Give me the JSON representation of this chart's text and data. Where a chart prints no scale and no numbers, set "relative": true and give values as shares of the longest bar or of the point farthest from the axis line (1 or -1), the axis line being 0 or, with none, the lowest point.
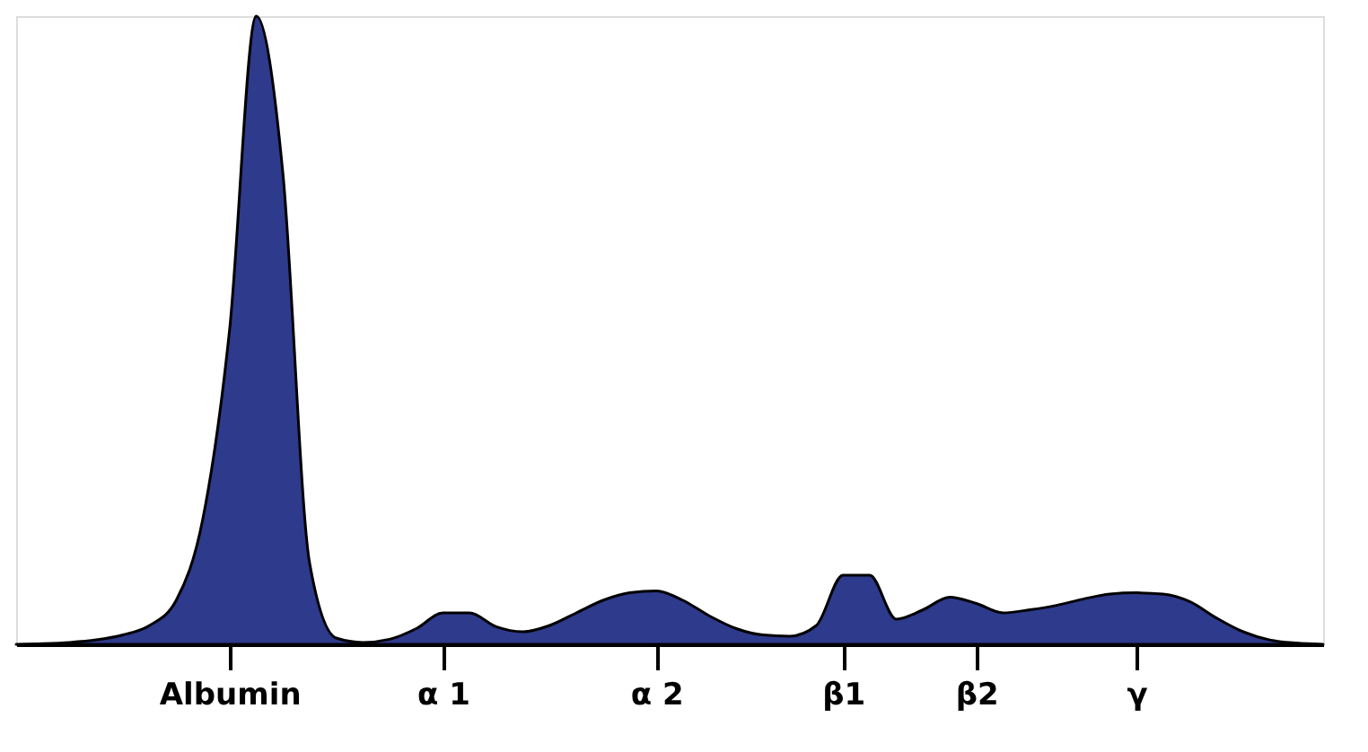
{
  "chart_data": {
    "type": "area",
    "relative": true,
    "color": "#2e3a8c",
    "categories": [
      null,
      null,
      null,
      null,
      null,
      null,
      null,
      null,
      "Albumin",
      null,
      null,
      null,
      null,
      null,
      null,
      null,
      "α 1",
      null,
      null,
      null,
      null,
      null,
      null,
      null,
      "α 2",
      null,
      null,
      null,
      null,
      null,
      null,
      "β1",
      null,
      null,
      null,
      null,
      "β2",
      null,
      null,
      null,
      null,
      null,
      "γ",
      null,
      null,
      null,
      null,
      null,
      null,
      null
    ],
    "values": [
      0,
      0.001,
      0.003,
      0.007,
      0.015,
      0.03,
      0.07,
      0.2,
      0.5,
      1.0,
      0.75,
      0.13,
      0.01,
      0.003,
      0.008,
      0.025,
      0.05,
      0.05,
      0.028,
      0.02,
      0.03,
      0.05,
      0.07,
      0.082,
      0.085,
      0.07,
      0.045,
      0.025,
      0.015,
      0.013,
      0.03,
      0.11,
      0.11,
      0.04,
      0.055,
      0.075,
      0.065,
      0.05,
      0.055,
      0.062,
      0.072,
      0.08,
      0.082,
      0.08,
      0.068,
      0.042,
      0.02,
      0.007,
      0.002,
      0
    ],
    "grid": false
  }
}
